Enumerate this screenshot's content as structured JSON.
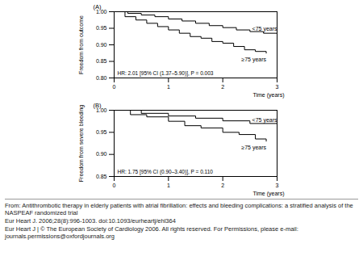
{
  "chart_data": [
    {
      "type": "line",
      "title": "(A)",
      "x_label": "Time (years)",
      "y_label": "Freedom from outcome",
      "annotation": "HR: 2.01 [95% CI (1.37–5.90)], P = 0.003",
      "xlim": [
        0,
        3
      ],
      "xticks": [
        0,
        1,
        2,
        3
      ],
      "ylim": [
        0.8,
        1.0
      ],
      "yticks": [
        {
          "value": 0.8,
          "label": "0.80"
        },
        0.85,
        {
          "value": 0.9,
          "label": "0.90"
        },
        0.95,
        {
          "value": 1.0,
          "label": "1.00"
        }
      ],
      "line_style": "step",
      "series": [
        {
          "name": "<75 years",
          "color": "#000000",
          "x": [
            0,
            0.25,
            0.5,
            0.75,
            1,
            1.25,
            1.5,
            1.75,
            2,
            2.25,
            2.5,
            2.75,
            3
          ],
          "values": [
            1,
            0.995,
            0.99,
            0.985,
            0.978,
            0.972,
            0.965,
            0.958,
            0.952,
            0.945,
            0.94,
            0.935,
            0.93
          ]
        },
        {
          "name": "≥75 years",
          "color": "#000000",
          "x": [
            0,
            0.2,
            0.4,
            0.6,
            0.8,
            1,
            1.2,
            1.4,
            1.6,
            1.8,
            2,
            2.2,
            2.4,
            2.6,
            2.8
          ],
          "values": [
            1,
            0.985,
            0.975,
            0.965,
            0.955,
            0.945,
            0.935,
            0.925,
            0.92,
            0.91,
            0.905,
            0.895,
            0.885,
            0.88,
            0.875
          ]
        }
      ]
    },
    {
      "type": "line",
      "title": "(B)",
      "x_label": "Time (years)",
      "y_label": "Freedom from severe bleeding",
      "annotation": "HR: 1.75 [95% CI (0.90–3.40)], P = 0.110",
      "xlim": [
        0,
        3
      ],
      "xticks": [
        0,
        1,
        2,
        3
      ],
      "ylim": [
        0.85,
        1.0
      ],
      "yticks": [
        0.85,
        {
          "value": 0.9,
          "label": "0.90"
        },
        0.95,
        {
          "value": 1.0,
          "label": "1.00"
        }
      ],
      "line_style": "step",
      "series": [
        {
          "name": "<75 years",
          "color": "#000000",
          "x": [
            0,
            0.5,
            1,
            1.5,
            2,
            2.5,
            3
          ],
          "values": [
            1,
            0.993,
            0.987,
            0.982,
            0.976,
            0.97,
            0.965
          ]
        },
        {
          "name": "≥75 years",
          "color": "#000000",
          "x": [
            0,
            0.3,
            0.6,
            1,
            1.3,
            1.6,
            2,
            2.3,
            2.6,
            2.8
          ],
          "values": [
            1,
            0.99,
            0.985,
            0.975,
            0.965,
            0.96,
            0.95,
            0.945,
            0.935,
            0.93
          ]
        }
      ]
    }
  ],
  "caption": [
    "From: Antithrombotic therapy in elderly patients with atrial fibrillation: effects and bleeding complications: a stratified analysis of the NASPEAF randomized trial",
    "Eur Heart J. 2006;28(8):996-1003. doi:10.1093/eurheartj/ehl364",
    "Eur Heart J | © The European Society of Cardiology 2006. All rights reserved. For Permissions, please e-mail: journals.permissions@oxfordjournals.org"
  ]
}
